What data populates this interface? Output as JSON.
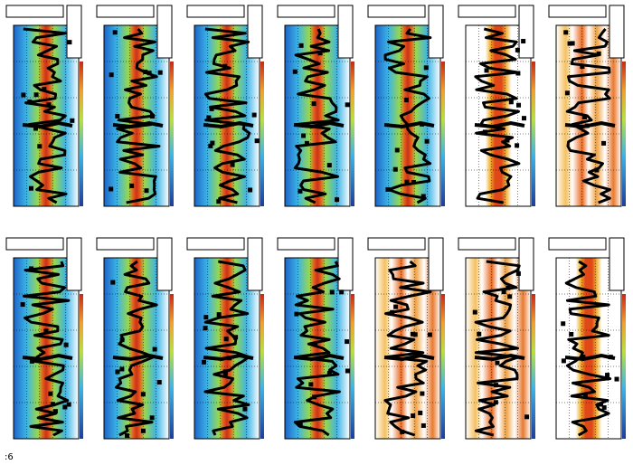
{
  "footer": {
    "text": ":6"
  }
}
